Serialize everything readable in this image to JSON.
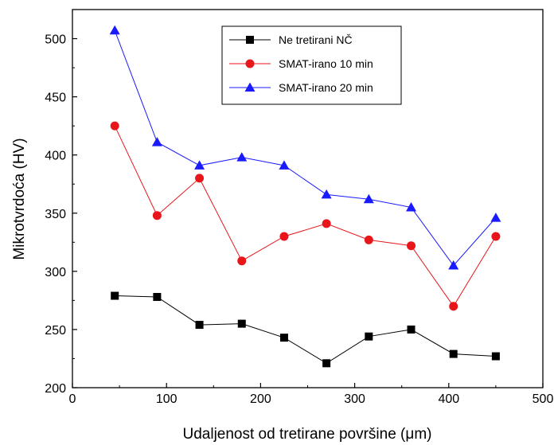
{
  "chart_data": {
    "type": "line",
    "xlabel": "Udaljenost od tretirane površine (μm)",
    "ylabel": "Mikrotvrdoća (HV)",
    "xlim": [
      0,
      500
    ],
    "ylim": [
      200,
      525
    ],
    "xticks": [
      0,
      100,
      200,
      300,
      400,
      500
    ],
    "yticks": [
      200,
      250,
      300,
      350,
      400,
      450,
      500
    ],
    "grid": false,
    "legend_position": "top-center",
    "x": [
      45,
      90,
      135,
      180,
      225,
      270,
      315,
      360,
      405,
      450
    ],
    "series": [
      {
        "name": "Ne tretirani NČ",
        "values": [
          279,
          278,
          254,
          255,
          243,
          221,
          244,
          250,
          229,
          227
        ],
        "color": "#000000",
        "marker": "square"
      },
      {
        "name": "SMAT-irano 10 min",
        "values": [
          425,
          348,
          380,
          309,
          330,
          341,
          327,
          322,
          270,
          330
        ],
        "color": "#e8161b",
        "marker": "circle"
      },
      {
        "name": "SMAT-irano 20 min",
        "values": [
          507,
          411,
          391,
          398,
          391,
          366,
          362,
          355,
          305,
          346
        ],
        "color": "#1a1aff",
        "marker": "triangle"
      }
    ]
  }
}
